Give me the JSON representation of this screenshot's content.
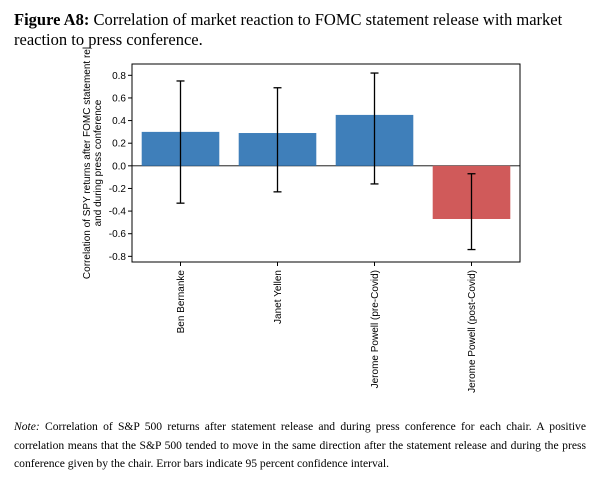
{
  "figure": {
    "label": "Figure A8:",
    "title": "Correlation of market reaction to FOMC statement release with market reaction to press conference."
  },
  "note": {
    "label": "Note:",
    "text": "Correlation of S&P 500 returns after statement release and during press conference for each chair. A positive correlation means that the S&P 500 tended to move in the same direction after the statement release and during the press conference given by the chair. Error bars indicate 95 percent confidence interval."
  },
  "chart_data": {
    "type": "bar",
    "ylabel": "Correlation of SPY returns after FOMC statement rel and during press conference",
    "ylabel_lines": [
      "Correlation of SPY returns after FOMC statement rel",
      "and during press conference"
    ],
    "ylim": [
      -0.85,
      0.9
    ],
    "yticks": [
      "0.8",
      "0.6",
      "0.4",
      "0.2",
      "0.0",
      "-0.2",
      "-0.4",
      "-0.6",
      "-0.8"
    ],
    "ytick_values": [
      0.8,
      0.6,
      0.4,
      0.2,
      0.0,
      -0.2,
      -0.4,
      -0.6,
      -0.8
    ],
    "grid": false,
    "zero_line": true,
    "categories": [
      "Ben Bernanke",
      "Janet Yellen",
      "Jerome Powell (pre-Covid)",
      "Jerome Powell (post-Covid)"
    ],
    "values": [
      0.3,
      0.29,
      0.45,
      -0.47
    ],
    "error_low": [
      -0.33,
      -0.23,
      -0.16,
      -0.74
    ],
    "error_high": [
      0.75,
      0.69,
      0.82,
      -0.07
    ],
    "colors": [
      "#3f7fba",
      "#3f7fba",
      "#3f7fba",
      "#d05a5a"
    ]
  }
}
